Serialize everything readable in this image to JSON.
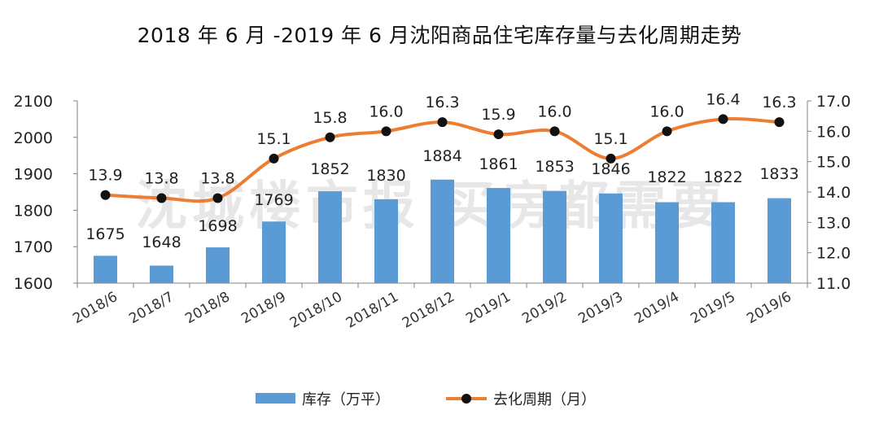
{
  "title": "2018 年 6 月 -2019 年 6 月沈阳商品住宅库存量与去化周期走势",
  "watermark": "沈城楼市报  买房都需要",
  "colors": {
    "bar": "#5b9bd5",
    "line": "#ed7d31",
    "marker": "#111111",
    "axis": "#808080"
  },
  "chart_data": {
    "type": "bar+line",
    "categories": [
      "2018/6",
      "2018/7",
      "2018/8",
      "2018/9",
      "2018/10",
      "2018/11",
      "2018/12",
      "2019/1",
      "2019/2",
      "2019/3",
      "2019/4",
      "2019/5",
      "2019/6"
    ],
    "series": [
      {
        "name": "库存（万平）",
        "type": "bar",
        "axis": "left",
        "values": [
          1675,
          1648,
          1698,
          1769,
          1852,
          1830,
          1884,
          1861,
          1853,
          1846,
          1822,
          1822,
          1833
        ]
      },
      {
        "name": "去化周期（月）",
        "type": "line",
        "axis": "right",
        "values": [
          13.9,
          13.8,
          13.8,
          15.1,
          15.8,
          16.0,
          16.3,
          15.9,
          16.0,
          15.1,
          16.0,
          16.4,
          16.3
        ]
      }
    ],
    "y_left": {
      "min": 1600,
      "max": 2100,
      "ticks": [
        "1600",
        "1700",
        "1800",
        "1900",
        "2000",
        "2100"
      ]
    },
    "y_right": {
      "min": 11.0,
      "max": 17.0,
      "ticks": [
        "11.0",
        "12.0",
        "13.0",
        "14.0",
        "15.0",
        "16.0",
        "17.0"
      ]
    },
    "bar_labels": [
      "1675",
      "1648",
      "1698",
      "1769",
      "1852",
      "1830",
      "1884",
      "1861",
      "1853",
      "1846",
      "1822",
      "1822",
      "1833"
    ],
    "line_labels": [
      "13.9",
      "13.8",
      "13.8",
      "15.1",
      "15.8",
      "16.0",
      "16.3",
      "15.9",
      "16.0",
      "15.1",
      "16.0",
      "16.4",
      "16.3"
    ],
    "grid": false,
    "legend": "bottom"
  }
}
